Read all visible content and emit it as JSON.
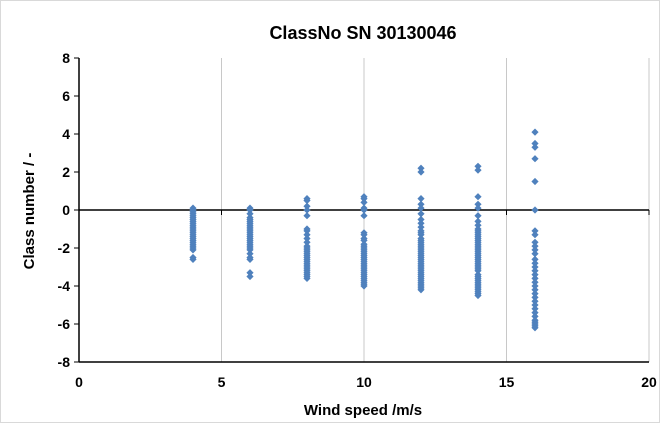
{
  "chart_data": {
    "type": "scatter",
    "title": "ClassNo SN 30130046",
    "xlabel": "Wind speed /m/s",
    "ylabel": "Class number / -",
    "xlim": [
      0,
      20
    ],
    "ylim": [
      -8,
      8
    ],
    "xticks": [
      0,
      5,
      10,
      15,
      20
    ],
    "yticks": [
      -8,
      -6,
      -4,
      -2,
      0,
      2,
      4,
      6,
      8
    ],
    "xtick_labels": [
      "0",
      "5",
      "10",
      "15",
      "20"
    ],
    "ytick_labels": [
      "-8",
      "-6",
      "-4",
      "-2",
      "0",
      "2",
      "4",
      "6",
      "8"
    ],
    "grid": "vertical-only",
    "legend": "none",
    "marker": "diamond",
    "series_color": "#4f81bd",
    "series": [
      {
        "points": [
          [
            4,
            0.1
          ],
          [
            4,
            0.0
          ],
          [
            4,
            -0.1
          ],
          [
            4,
            -0.2
          ],
          [
            4,
            -0.3
          ],
          [
            4,
            -0.4
          ],
          [
            4,
            -0.5
          ],
          [
            4,
            -0.6
          ],
          [
            4,
            -0.7
          ],
          [
            4,
            -0.8
          ],
          [
            4,
            -0.9
          ],
          [
            4,
            -1.0
          ],
          [
            4,
            -1.1
          ],
          [
            4,
            -1.2
          ],
          [
            4,
            -1.3
          ],
          [
            4,
            -1.4
          ],
          [
            4,
            -1.5
          ],
          [
            4,
            -1.6
          ],
          [
            4,
            -1.7
          ],
          [
            4,
            -1.8
          ],
          [
            4,
            -1.9
          ],
          [
            4,
            -2.0
          ],
          [
            4,
            -2.1
          ],
          [
            4,
            -2.5
          ],
          [
            4,
            -2.6
          ],
          [
            6,
            0.1
          ],
          [
            6,
            0.0
          ],
          [
            6,
            -0.2
          ],
          [
            6,
            -0.4
          ],
          [
            6,
            -0.5
          ],
          [
            6,
            -0.6
          ],
          [
            6,
            -0.7
          ],
          [
            6,
            -0.8
          ],
          [
            6,
            -0.9
          ],
          [
            6,
            -1.0
          ],
          [
            6,
            -1.1
          ],
          [
            6,
            -1.2
          ],
          [
            6,
            -1.3
          ],
          [
            6,
            -1.4
          ],
          [
            6,
            -1.5
          ],
          [
            6,
            -1.6
          ],
          [
            6,
            -1.7
          ],
          [
            6,
            -1.8
          ],
          [
            6,
            -1.9
          ],
          [
            6,
            -2.0
          ],
          [
            6,
            -2.1
          ],
          [
            6,
            -2.3
          ],
          [
            6,
            -2.5
          ],
          [
            6,
            -2.6
          ],
          [
            6,
            -3.3
          ],
          [
            6,
            -3.5
          ],
          [
            8,
            0.6
          ],
          [
            8,
            0.5
          ],
          [
            8,
            0.2
          ],
          [
            8,
            0.0
          ],
          [
            8,
            -0.3
          ],
          [
            8,
            -1.0
          ],
          [
            8,
            -1.1
          ],
          [
            8,
            -1.3
          ],
          [
            8,
            -1.5
          ],
          [
            8,
            -1.7
          ],
          [
            8,
            -1.9
          ],
          [
            8,
            -2.0
          ],
          [
            8,
            -2.1
          ],
          [
            8,
            -2.2
          ],
          [
            8,
            -2.3
          ],
          [
            8,
            -2.4
          ],
          [
            8,
            -2.5
          ],
          [
            8,
            -2.6
          ],
          [
            8,
            -2.7
          ],
          [
            8,
            -2.8
          ],
          [
            8,
            -2.9
          ],
          [
            8,
            -3.0
          ],
          [
            8,
            -3.1
          ],
          [
            8,
            -3.2
          ],
          [
            8,
            -3.3
          ],
          [
            8,
            -3.4
          ],
          [
            8,
            -3.5
          ],
          [
            8,
            -3.6
          ],
          [
            10,
            0.7
          ],
          [
            10,
            0.6
          ],
          [
            10,
            0.4
          ],
          [
            10,
            0.1
          ],
          [
            10,
            0.0
          ],
          [
            10,
            -0.3
          ],
          [
            10,
            -1.2
          ],
          [
            10,
            -1.3
          ],
          [
            10,
            -1.5
          ],
          [
            10,
            -1.6
          ],
          [
            10,
            -1.8
          ],
          [
            10,
            -1.9
          ],
          [
            10,
            -2.0
          ],
          [
            10,
            -2.1
          ],
          [
            10,
            -2.2
          ],
          [
            10,
            -2.3
          ],
          [
            10,
            -2.4
          ],
          [
            10,
            -2.5
          ],
          [
            10,
            -2.6
          ],
          [
            10,
            -2.7
          ],
          [
            10,
            -2.8
          ],
          [
            10,
            -2.9
          ],
          [
            10,
            -3.0
          ],
          [
            10,
            -3.1
          ],
          [
            10,
            -3.2
          ],
          [
            10,
            -3.3
          ],
          [
            10,
            -3.4
          ],
          [
            10,
            -3.5
          ],
          [
            10,
            -3.6
          ],
          [
            10,
            -3.7
          ],
          [
            10,
            -3.8
          ],
          [
            10,
            -3.9
          ],
          [
            10,
            -4.0
          ],
          [
            12,
            2.2
          ],
          [
            12,
            2.0
          ],
          [
            12,
            0.6
          ],
          [
            12,
            0.3
          ],
          [
            12,
            0.1
          ],
          [
            12,
            -0.2
          ],
          [
            12,
            -0.5
          ],
          [
            12,
            -0.7
          ],
          [
            12,
            -0.9
          ],
          [
            12,
            -1.1
          ],
          [
            12,
            -1.2
          ],
          [
            12,
            -1.3
          ],
          [
            12,
            -1.5
          ],
          [
            12,
            -1.6
          ],
          [
            12,
            -1.7
          ],
          [
            12,
            -1.8
          ],
          [
            12,
            -1.9
          ],
          [
            12,
            -2.0
          ],
          [
            12,
            -2.1
          ],
          [
            12,
            -2.2
          ],
          [
            12,
            -2.3
          ],
          [
            12,
            -2.4
          ],
          [
            12,
            -2.5
          ],
          [
            12,
            -2.6
          ],
          [
            12,
            -2.7
          ],
          [
            12,
            -2.8
          ],
          [
            12,
            -2.9
          ],
          [
            12,
            -3.0
          ],
          [
            12,
            -3.1
          ],
          [
            12,
            -3.2
          ],
          [
            12,
            -3.3
          ],
          [
            12,
            -3.4
          ],
          [
            12,
            -3.5
          ],
          [
            12,
            -3.6
          ],
          [
            12,
            -3.7
          ],
          [
            12,
            -3.8
          ],
          [
            12,
            -3.9
          ],
          [
            12,
            -4.0
          ],
          [
            12,
            -4.1
          ],
          [
            12,
            -4.2
          ],
          [
            14,
            2.3
          ],
          [
            14,
            2.1
          ],
          [
            14,
            0.7
          ],
          [
            14,
            0.3
          ],
          [
            14,
            0.1
          ],
          [
            14,
            -0.3
          ],
          [
            14,
            -0.6
          ],
          [
            14,
            -0.8
          ],
          [
            14,
            -1.0
          ],
          [
            14,
            -1.1
          ],
          [
            14,
            -1.2
          ],
          [
            14,
            -1.3
          ],
          [
            14,
            -1.4
          ],
          [
            14,
            -1.5
          ],
          [
            14,
            -1.6
          ],
          [
            14,
            -1.7
          ],
          [
            14,
            -1.8
          ],
          [
            14,
            -1.9
          ],
          [
            14,
            -2.0
          ],
          [
            14,
            -2.1
          ],
          [
            14,
            -2.2
          ],
          [
            14,
            -2.3
          ],
          [
            14,
            -2.4
          ],
          [
            14,
            -2.5
          ],
          [
            14,
            -2.6
          ],
          [
            14,
            -2.7
          ],
          [
            14,
            -2.8
          ],
          [
            14,
            -2.9
          ],
          [
            14,
            -3.0
          ],
          [
            14,
            -3.1
          ],
          [
            14,
            -3.2
          ],
          [
            14,
            -3.4
          ],
          [
            14,
            -3.5
          ],
          [
            14,
            -3.6
          ],
          [
            14,
            -3.7
          ],
          [
            14,
            -3.8
          ],
          [
            14,
            -3.9
          ],
          [
            14,
            -4.0
          ],
          [
            14,
            -4.1
          ],
          [
            14,
            -4.2
          ],
          [
            14,
            -4.3
          ],
          [
            14,
            -4.4
          ],
          [
            14,
            -4.5
          ],
          [
            16,
            4.1
          ],
          [
            16,
            3.5
          ],
          [
            16,
            3.3
          ],
          [
            16,
            2.7
          ],
          [
            16,
            1.5
          ],
          [
            16,
            0.0
          ],
          [
            16,
            -1.1
          ],
          [
            16,
            -1.3
          ],
          [
            16,
            -1.7
          ],
          [
            16,
            -1.9
          ],
          [
            16,
            -2.1
          ],
          [
            16,
            -2.3
          ],
          [
            16,
            -2.6
          ],
          [
            16,
            -2.8
          ],
          [
            16,
            -3.0
          ],
          [
            16,
            -3.2
          ],
          [
            16,
            -3.4
          ],
          [
            16,
            -3.6
          ],
          [
            16,
            -3.8
          ],
          [
            16,
            -4.0
          ],
          [
            16,
            -4.2
          ],
          [
            16,
            -4.4
          ],
          [
            16,
            -4.6
          ],
          [
            16,
            -4.8
          ],
          [
            16,
            -5.0
          ],
          [
            16,
            -5.2
          ],
          [
            16,
            -5.4
          ],
          [
            16,
            -5.6
          ],
          [
            16,
            -5.8
          ],
          [
            16,
            -5.9
          ],
          [
            16,
            -6.0
          ],
          [
            16,
            -6.1
          ],
          [
            16,
            -6.2
          ]
        ]
      }
    ]
  }
}
